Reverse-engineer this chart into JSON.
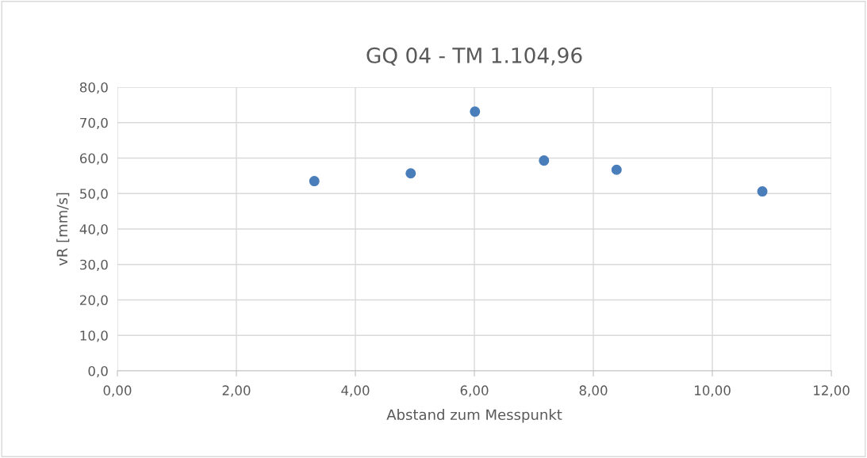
{
  "chart_data": {
    "type": "scatter",
    "title": "GQ 04 - TM 1.104,96",
    "xlabel": "Abstand zum Messpunkt",
    "ylabel": "vR [mm/s]",
    "x": [
      3.31,
      4.93,
      6.01,
      7.17,
      8.39,
      10.84
    ],
    "series": [
      {
        "color": "#4a7ebb",
        "values": [
          53.5,
          55.7,
          73.1,
          59.3,
          56.7,
          50.6
        ]
      }
    ],
    "xlim": [
      0,
      12
    ],
    "xticks": [
      {
        "value": 0,
        "label": "0,00"
      },
      {
        "value": 2,
        "label": "2,00"
      },
      {
        "value": 4,
        "label": "4,00"
      },
      {
        "value": 6,
        "label": "6,00"
      },
      {
        "value": 8,
        "label": "8,00"
      },
      {
        "value": 10,
        "label": "10,00"
      },
      {
        "value": 12,
        "label": "12,00"
      }
    ],
    "ylim": [
      0,
      80
    ],
    "yticks": [
      {
        "value": 0,
        "label": "0,0"
      },
      {
        "value": 10,
        "label": "10,0"
      },
      {
        "value": 20,
        "label": "20,0"
      },
      {
        "value": 30,
        "label": "30,0"
      },
      {
        "value": 40,
        "label": "40,0"
      },
      {
        "value": 50,
        "label": "50,0"
      },
      {
        "value": 60,
        "label": "60,0"
      },
      {
        "value": 70,
        "label": "70,0"
      },
      {
        "value": 80,
        "label": "80,0"
      }
    ],
    "grid": true,
    "marker": "circle"
  }
}
